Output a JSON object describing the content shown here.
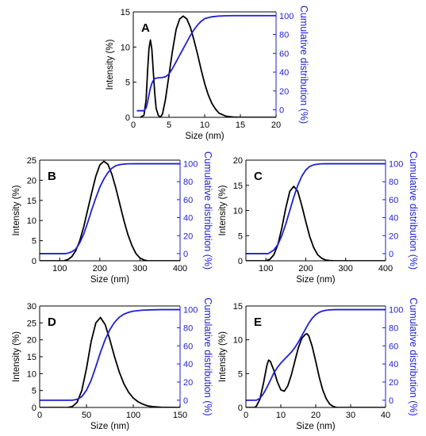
{
  "chart_data": [
    {
      "type": "line",
      "panel_label": "A",
      "xlabel": "Size (nm)",
      "ylabel_left": "Intensity (%)",
      "ylabel_right": "Cumulative distribution (%)",
      "xlim": [
        0,
        20
      ],
      "ylim_left": [
        0,
        15
      ],
      "ylim_right": [
        -8,
        104
      ],
      "xticks": [
        0,
        5,
        10,
        15,
        20
      ],
      "yticks_left": [
        0,
        5,
        10,
        15
      ],
      "yticks_right": [
        0,
        20,
        40,
        60,
        80,
        100
      ],
      "grid": false,
      "series": [
        {
          "axis": "left",
          "color": "#000000",
          "x": [
            1,
            1.5,
            1.8,
            2.0,
            2.2,
            2.4,
            2.6,
            2.8,
            3.0,
            3.2,
            3.5,
            3.8,
            4.1,
            4.5,
            5.0,
            5.5,
            6.0,
            6.5,
            7.0,
            7.5,
            8.0,
            8.5,
            9.0,
            9.5,
            10,
            10.5,
            11,
            11.5,
            12,
            13,
            14,
            15,
            20
          ],
          "y": [
            0,
            0.3,
            2.5,
            6.5,
            9.8,
            11,
            9.7,
            6.6,
            3.5,
            1.3,
            0.3,
            0,
            0.5,
            2.5,
            6.0,
            9.5,
            12.5,
            14.0,
            14.4,
            14.0,
            12.8,
            11.0,
            9.0,
            6.8,
            4.8,
            3.2,
            2.0,
            1.2,
            0.6,
            0.15,
            0.04,
            0,
            0
          ]
        },
        {
          "axis": "right",
          "color": "#1f1fd6",
          "x": [
            0.5,
            1.5,
            1.8,
            2.0,
            2.2,
            2.4,
            2.6,
            2.8,
            3.0,
            3.2,
            3.5,
            4.0,
            4.5,
            5.0,
            5.5,
            6.0,
            6.5,
            7.0,
            7.5,
            8.0,
            8.5,
            9.0,
            9.5,
            10,
            11,
            12,
            13,
            14,
            15,
            20
          ],
          "y": [
            -1,
            -1,
            2,
            8,
            16,
            23,
            28,
            31,
            33,
            33.6,
            34,
            34.2,
            35,
            38,
            44,
            51,
            58,
            65,
            72,
            79,
            85,
            90,
            94,
            96.8,
            98.8,
            99.6,
            99.9,
            100,
            100,
            100
          ]
        }
      ]
    },
    {
      "type": "line",
      "panel_label": "B",
      "xlabel": "Size (nm)",
      "ylabel_left": "Intensity (%)",
      "ylabel_right": "Cumulative distribution (%)",
      "xlim": [
        50,
        400
      ],
      "ylim_left": [
        0,
        25
      ],
      "ylim_right": [
        -8,
        104
      ],
      "xticks": [
        100,
        200,
        300,
        400
      ],
      "yticks_left": [
        0,
        5,
        10,
        15,
        20,
        25
      ],
      "yticks_right": [
        0,
        20,
        40,
        60,
        80,
        100
      ],
      "grid": false,
      "series": [
        {
          "axis": "left",
          "color": "#000000",
          "x": [
            50,
            110,
            120,
            130,
            140,
            150,
            160,
            170,
            180,
            190,
            200,
            210,
            220,
            230,
            240,
            250,
            260,
            270,
            280,
            290,
            300,
            310,
            320,
            400
          ],
          "y": [
            0,
            0,
            0.3,
            1.0,
            2.5,
            5.0,
            8.5,
            12.8,
            17.0,
            21.0,
            23.8,
            24.7,
            24.0,
            21.5,
            18.0,
            14.0,
            10.0,
            6.5,
            3.8,
            1.8,
            0.7,
            0.2,
            0,
            0
          ]
        },
        {
          "axis": "right",
          "color": "#1f1fd6",
          "x": [
            50,
            115,
            120,
            130,
            140,
            150,
            160,
            170,
            180,
            190,
            200,
            210,
            220,
            230,
            240,
            250,
            260,
            270,
            290,
            400
          ],
          "y": [
            0,
            0,
            0.5,
            2,
            5,
            12,
            22,
            35,
            49,
            62,
            74,
            83,
            90,
            95,
            97.8,
            99,
            99.6,
            99.9,
            100,
            100
          ]
        }
      ]
    },
    {
      "type": "line",
      "panel_label": "C",
      "xlabel": "Size (nm)",
      "ylabel_left": "Intensity (%)",
      "ylabel_right": "Cumulative distribution (%)",
      "xlim": [
        50,
        400
      ],
      "ylim_left": [
        0,
        20
      ],
      "ylim_right": [
        -8,
        104
      ],
      "xticks": [
        100,
        200,
        300,
        400
      ],
      "yticks_left": [
        0,
        5,
        10,
        15,
        20
      ],
      "yticks_right": [
        0,
        20,
        40,
        60,
        80,
        100
      ],
      "grid": false,
      "series": [
        {
          "axis": "left",
          "color": "#000000",
          "x": [
            50,
            100,
            110,
            120,
            130,
            140,
            150,
            160,
            170,
            180,
            190,
            200,
            210,
            220,
            230,
            240,
            250,
            260,
            270,
            400
          ],
          "y": [
            0,
            0,
            0.3,
            1.2,
            3.2,
            6.5,
            10.5,
            13.8,
            14.8,
            13.8,
            11.0,
            7.8,
            4.8,
            2.6,
            1.2,
            0.5,
            0.15,
            0.05,
            0,
            0
          ]
        },
        {
          "axis": "right",
          "color": "#1f1fd6",
          "x": [
            50,
            105,
            110,
            120,
            130,
            140,
            150,
            160,
            170,
            180,
            190,
            200,
            210,
            220,
            230,
            240,
            250,
            270,
            400
          ],
          "y": [
            0,
            0,
            1,
            4,
            10,
            20,
            33,
            48,
            63,
            76,
            86,
            93,
            97,
            98.8,
            99.5,
            99.9,
            100,
            100,
            100
          ]
        }
      ]
    },
    {
      "type": "line",
      "panel_label": "D",
      "xlabel": "Size (nm)",
      "ylabel_left": "Intensity (%)",
      "ylabel_right": "Cumulative distribution (%)",
      "xlim": [
        0,
        150
      ],
      "ylim_left": [
        0,
        30
      ],
      "ylim_right": [
        -8,
        104
      ],
      "xticks": [
        0,
        50,
        100,
        150
      ],
      "yticks_left": [
        0,
        5,
        10,
        15,
        20,
        25,
        30
      ],
      "yticks_right": [
        0,
        20,
        40,
        60,
        80,
        100
      ],
      "grid": false,
      "series": [
        {
          "axis": "left",
          "color": "#000000",
          "x": [
            0,
            30,
            35,
            40,
            45,
            50,
            55,
            60,
            65,
            70,
            75,
            80,
            85,
            90,
            95,
            100,
            105,
            110,
            115,
            120,
            130,
            150
          ],
          "y": [
            0,
            0,
            0.3,
            1.5,
            5.0,
            11.5,
            19.5,
            25.0,
            26.6,
            24.5,
            20.0,
            15.0,
            10.5,
            7.0,
            4.5,
            2.8,
            1.7,
            1.0,
            0.5,
            0.25,
            0.05,
            0
          ]
        },
        {
          "axis": "right",
          "color": "#1f1fd6",
          "x": [
            0,
            35,
            40,
            45,
            50,
            55,
            60,
            65,
            70,
            75,
            80,
            85,
            90,
            95,
            100,
            110,
            120,
            130,
            150
          ],
          "y": [
            0,
            0,
            1,
            4,
            11,
            22,
            37,
            53,
            67,
            78,
            86,
            91.5,
            95,
            97,
            98.3,
            99.4,
            99.8,
            100,
            100
          ]
        }
      ]
    },
    {
      "type": "line",
      "panel_label": "E",
      "xlabel": "Size (nm)",
      "ylabel_left": "Intensity (%)",
      "ylabel_right": "Cumulative distribution (%)",
      "xlim": [
        0,
        40
      ],
      "ylim_left": [
        0,
        15
      ],
      "ylim_right": [
        -8,
        104
      ],
      "xticks": [
        0,
        10,
        20,
        30,
        40
      ],
      "yticks_left": [
        0,
        5,
        10,
        15
      ],
      "yticks_right": [
        0,
        20,
        40,
        60,
        80,
        100
      ],
      "grid": false,
      "series": [
        {
          "axis": "left",
          "color": "#000000",
          "x": [
            0,
            2.5,
            3,
            4,
            5,
            6,
            6.5,
            7,
            8,
            9,
            10,
            11,
            12,
            13,
            14,
            15,
            16,
            17,
            17.5,
            18,
            19,
            20,
            21,
            22,
            23,
            24,
            25,
            26,
            40
          ],
          "y": [
            0,
            0,
            0.2,
            1.2,
            3.5,
            6.2,
            7.0,
            6.8,
            5.5,
            3.8,
            2.6,
            2.4,
            3.2,
            4.8,
            6.8,
            8.8,
            10.2,
            10.8,
            10.9,
            10.6,
            9.0,
            6.8,
            4.5,
            2.6,
            1.3,
            0.5,
            0.15,
            0,
            0
          ]
        },
        {
          "axis": "right",
          "color": "#1f1fd6",
          "x": [
            0,
            3,
            4,
            5,
            6,
            7,
            8,
            9,
            10,
            11,
            12,
            13,
            14,
            15,
            16,
            17,
            18,
            19,
            20,
            21,
            22,
            23,
            24,
            25,
            26,
            40
          ],
          "y": [
            0,
            0,
            2,
            7,
            14,
            22,
            30,
            36,
            41,
            45,
            49,
            53,
            58,
            64,
            71,
            78,
            85,
            90.5,
            94.5,
            97,
            98.5,
            99.3,
            99.7,
            99.9,
            100,
            100
          ]
        }
      ]
    }
  ]
}
